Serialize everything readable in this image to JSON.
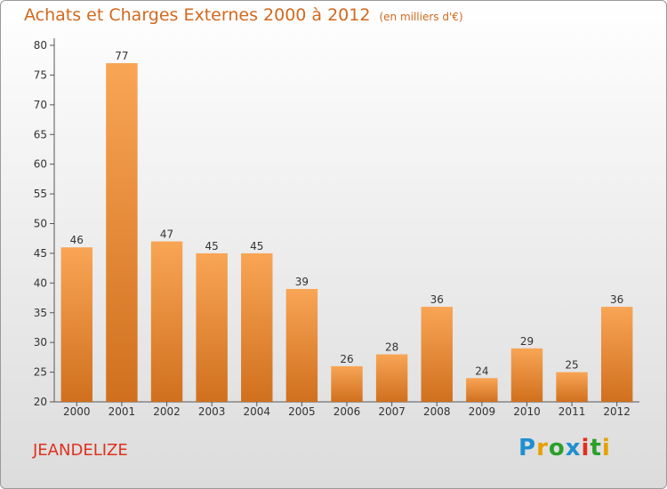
{
  "header": {
    "title": "Achats et Charges Externes 2000 à 2012",
    "unit": "(en milliers d'€)"
  },
  "footer": {
    "commune": "JEANDELIZE",
    "logo_letters": [
      "P",
      "r",
      "o",
      "x",
      "i",
      "t",
      "i"
    ]
  },
  "colors": {
    "bar_top": "#f8a555",
    "bar_bottom": "#d0701e",
    "title": "#d2691e",
    "commune": "#e0301e"
  },
  "chart_data": {
    "type": "bar",
    "title": "Achats et Charges Externes 2000 à 2012",
    "subtitle": "(en milliers d'€)",
    "xlabel": "",
    "ylabel": "",
    "categories": [
      "2000",
      "2001",
      "2002",
      "2003",
      "2004",
      "2005",
      "2006",
      "2007",
      "2008",
      "2009",
      "2010",
      "2011",
      "2012"
    ],
    "values": [
      46,
      77,
      47,
      45,
      45,
      39,
      26,
      28,
      36,
      24,
      29,
      25,
      36
    ],
    "ylim": [
      20,
      80
    ],
    "yticks": [
      20,
      25,
      30,
      35,
      40,
      45,
      50,
      55,
      60,
      65,
      70,
      75,
      80
    ],
    "grid": false,
    "data_labels": true
  }
}
